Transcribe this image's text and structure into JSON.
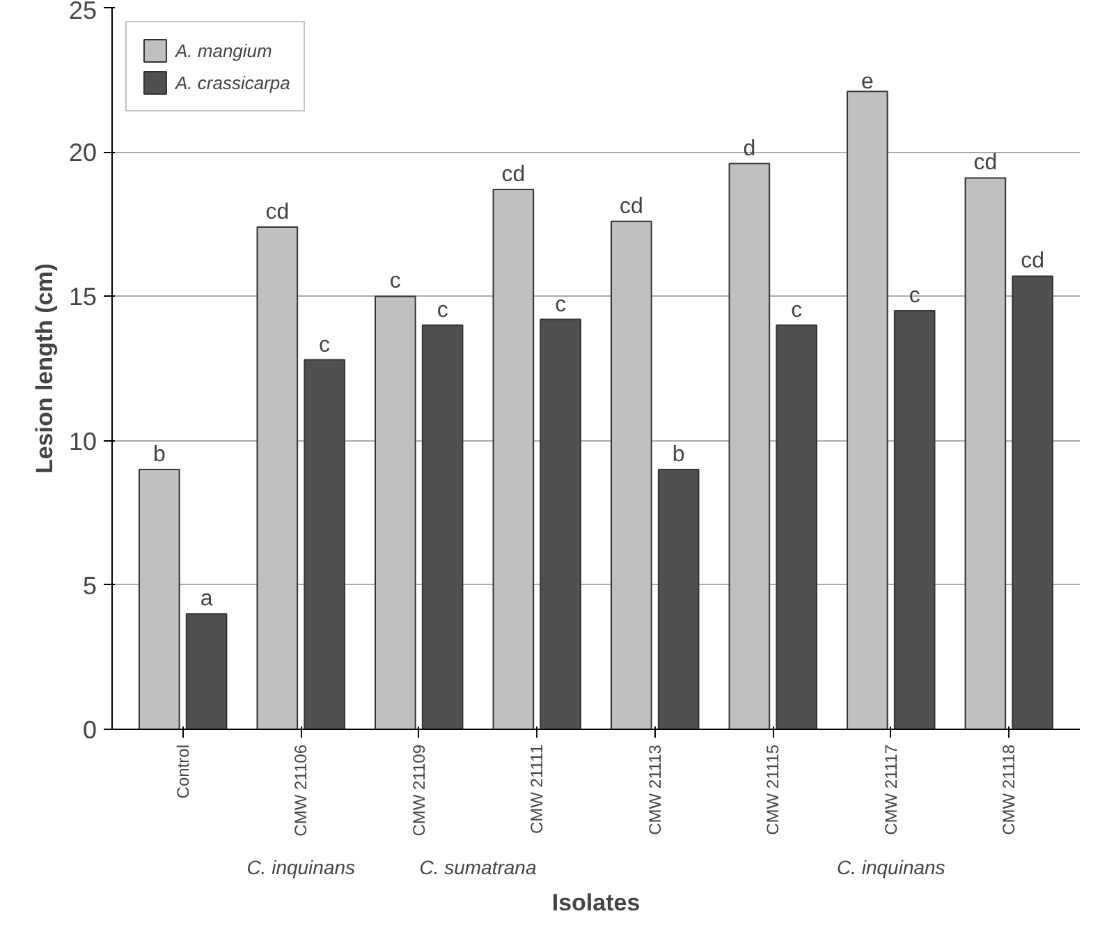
{
  "chart_data": {
    "type": "bar",
    "xlabel": "Isolates",
    "ylabel": "Lesion length (cm)",
    "categories": [
      "Control",
      "CMW 21106",
      "CMW 21109",
      "CMW 21111",
      "CMW 21113",
      "CMW 21115",
      "CMW 21117",
      "CMW 21118"
    ],
    "series": [
      {
        "name": "A. mangium",
        "color": "#c0c0c0",
        "values": [
          9,
          17.4,
          15,
          18.7,
          17.6,
          19.6,
          22.1,
          19.1
        ],
        "value_labels": [
          "b",
          "cd",
          "c",
          "cd",
          "cd",
          "d",
          "e",
          "cd"
        ]
      },
      {
        "name": "A. crassicarpa",
        "color": "#505050",
        "values": [
          4,
          12.8,
          14,
          14.2,
          9,
          14,
          14.5,
          15.7
        ],
        "value_labels": [
          "a",
          "c",
          "c",
          "c",
          "b",
          "c",
          "c",
          "cd"
        ]
      }
    ],
    "ylim": [
      0,
      25
    ],
    "yticks": [
      0,
      5,
      10,
      15,
      20,
      25
    ],
    "grid": "y",
    "legend": "top left",
    "annotations": [
      "C. inquinans",
      "C. sumatrana",
      "C. inquinans"
    ]
  }
}
